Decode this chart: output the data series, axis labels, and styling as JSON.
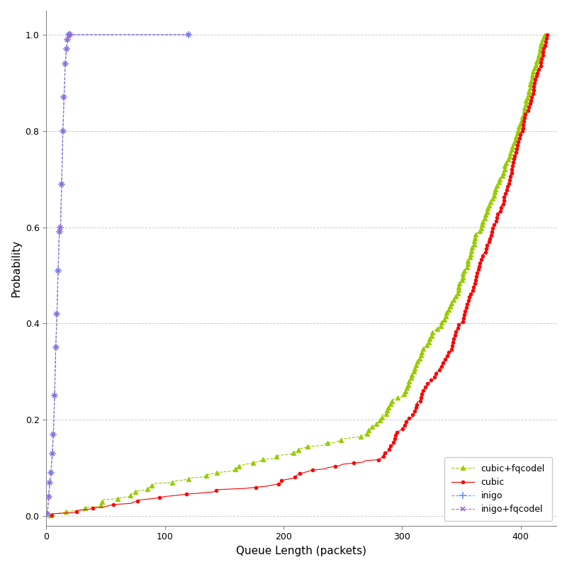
{
  "xlabel": "Queue Length (packets)",
  "ylabel": "Probability",
  "xlim": [
    0,
    430
  ],
  "ylim": [
    -0.02,
    1.05
  ],
  "xticks": [
    0,
    100,
    200,
    300,
    400
  ],
  "yticks": [
    0.0,
    0.2,
    0.4,
    0.6,
    0.8,
    1.0
  ],
  "series": {
    "cubic": {
      "color": "#ff0000",
      "marker": "o",
      "markersize": 3,
      "linestyle": "-",
      "linewidth": 0.8
    },
    "cubic+fqcodel": {
      "color": "#99cc00",
      "marker": "^",
      "markersize": 4,
      "linestyle": "--",
      "linewidth": 0.8
    },
    "inigo": {
      "color": "#6699ff",
      "marker": "+",
      "markersize": 7,
      "linestyle": "--",
      "linewidth": 0.8
    },
    "inigo+fqcodel": {
      "color": "#9966cc",
      "marker": "x",
      "markersize": 5,
      "linestyle": "--",
      "linewidth": 0.8
    }
  },
  "legend_loc": "lower right",
  "background_color": "#ffffff",
  "grid_color": "#cccccc",
  "grid_linestyle": "--",
  "fig_width": 8.0,
  "fig_height": 8.0
}
